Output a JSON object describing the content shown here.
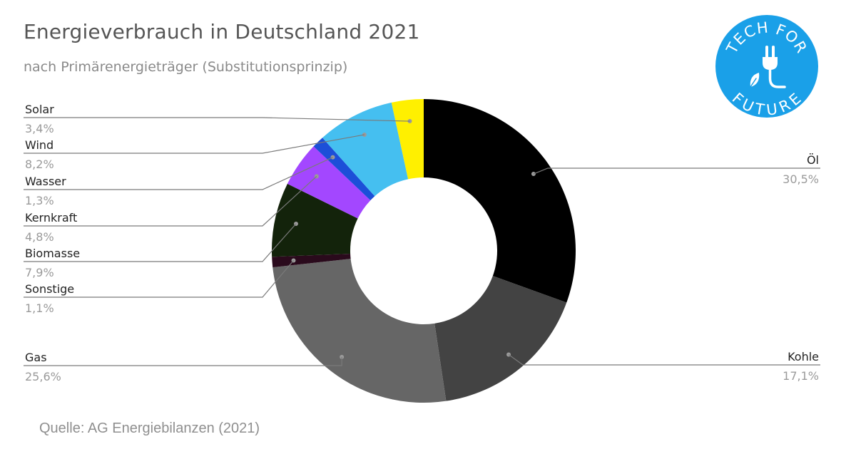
{
  "title": "Energieverbrauch in Deutschland 2021",
  "subtitle": "nach Primärenergieträger (Substitutionsprinzip)",
  "source": "Quelle: AG Energiebilanzen (2021)",
  "logo": {
    "top_text": "TECH FOR",
    "bottom_text": "FUTURE",
    "color": "#1aa0e8",
    "icon": "plug-leaf-icon"
  },
  "chart_data": {
    "type": "pie",
    "variant": "donut",
    "title": "Energieverbrauch in Deutschland 2021",
    "subtitle": "nach Primärenergieträger (Substitutionsprinzip)",
    "unit": "%",
    "slices": [
      {
        "name": "Öl",
        "value": 30.5,
        "label": "30,5%",
        "color": "#000000"
      },
      {
        "name": "Kohle",
        "value": 17.1,
        "label": "17,1%",
        "color": "#434343"
      },
      {
        "name": "Gas",
        "value": 25.6,
        "label": "25,6%",
        "color": "#666666"
      },
      {
        "name": "Sonstige",
        "value": 1.1,
        "label": "1,1%",
        "color": "#2a0a1c"
      },
      {
        "name": "Biomasse",
        "value": 7.9,
        "label": "7,9%",
        "color": "#13230b"
      },
      {
        "name": "Kernkraft",
        "value": 4.8,
        "label": "4,8%",
        "color": "#a347ff"
      },
      {
        "name": "Wasser",
        "value": 1.3,
        "label": "1,3%",
        "color": "#1c4fd8"
      },
      {
        "name": "Wind",
        "value": 8.2,
        "label": "8,2%",
        "color": "#45bff0"
      },
      {
        "name": "Solar",
        "value": 3.4,
        "label": "3,4%",
        "color": "#fff000"
      }
    ]
  }
}
